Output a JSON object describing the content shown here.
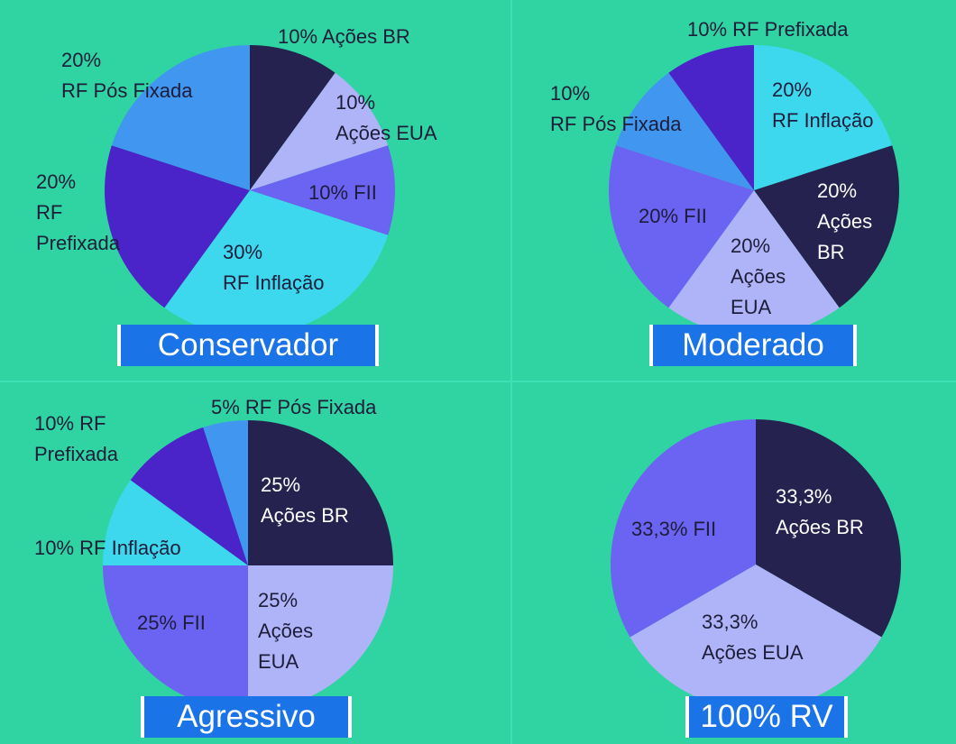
{
  "colors": {
    "background": "#30d3a2",
    "navy": "#262250",
    "lavender": "#aeb4f7",
    "violet": "#6b63f2",
    "cyan": "#3dd8ee",
    "purple": "#4a23c9",
    "blue": "#4197f0",
    "badge": "#1a74e8",
    "dark_text": "#1d1d3a",
    "light_text": "#ffffff"
  },
  "portfolios": {
    "conservador": "Conservador",
    "moderado": "Moderado",
    "agressivo": "Agressivo",
    "rv": "100% RV"
  },
  "chart_data": [
    {
      "type": "pie",
      "title": "Conservador",
      "slices": [
        {
          "label": "Ações BR",
          "value": 10,
          "text": [
            "10% Ações BR"
          ],
          "color": "#262250"
        },
        {
          "label": "Ações EUA",
          "value": 10,
          "text": [
            "10%",
            "Ações EUA"
          ],
          "color": "#aeb4f7"
        },
        {
          "label": "FII",
          "value": 10,
          "text": [
            "10% FII"
          ],
          "color": "#6b63f2"
        },
        {
          "label": "RF Inflação",
          "value": 30,
          "text": [
            "30%",
            "RF Inflação"
          ],
          "color": "#3dd8ee"
        },
        {
          "label": "RF Prefixada",
          "value": 20,
          "text": [
            "20%",
            "RF",
            "Prefixada"
          ],
          "color": "#4a23c9"
        },
        {
          "label": "RF Pós Fixada",
          "value": 20,
          "text": [
            "20%",
            "RF Pós Fixada"
          ],
          "color": "#4197f0"
        }
      ]
    },
    {
      "type": "pie",
      "title": "Moderado",
      "slices": [
        {
          "label": "RF Inflação",
          "value": 20,
          "text": [
            "20%",
            "RF Inflação"
          ],
          "color": "#3dd8ee"
        },
        {
          "label": "Ações BR",
          "value": 20,
          "text": [
            "20%",
            "Ações",
            "BR"
          ],
          "color": "#262250"
        },
        {
          "label": "Ações EUA",
          "value": 20,
          "text": [
            "20%",
            "Ações",
            "EUA"
          ],
          "color": "#aeb4f7"
        },
        {
          "label": "FII",
          "value": 20,
          "text": [
            "20% FII"
          ],
          "color": "#6b63f2"
        },
        {
          "label": "RF Pós Fixada",
          "value": 10,
          "text": [
            "10%",
            "RF Pós Fixada"
          ],
          "color": "#4197f0"
        },
        {
          "label": "RF Prefixada",
          "value": 10,
          "text": [
            "10% RF Prefixada"
          ],
          "color": "#4a23c9"
        }
      ]
    },
    {
      "type": "pie",
      "title": "Agressivo",
      "slices": [
        {
          "label": "Ações BR",
          "value": 25,
          "text": [
            "25%",
            "Ações BR"
          ],
          "color": "#262250"
        },
        {
          "label": "Ações EUA",
          "value": 25,
          "text": [
            "25%",
            "Ações",
            "EUA"
          ],
          "color": "#aeb4f7"
        },
        {
          "label": "FII",
          "value": 25,
          "text": [
            "25% FII"
          ],
          "color": "#6b63f2"
        },
        {
          "label": "RF Inflação",
          "value": 10,
          "text": [
            "10% RF Inflação"
          ],
          "color": "#3dd8ee"
        },
        {
          "label": "RF Prefixada",
          "value": 10,
          "text": [
            "10% RF",
            "Prefixada"
          ],
          "color": "#4a23c9"
        },
        {
          "label": "RF Pós Fixada",
          "value": 5,
          "text": [
            "5% RF Pós Fixada"
          ],
          "color": "#4197f0"
        }
      ]
    },
    {
      "type": "pie",
      "title": "100% RV",
      "slices": [
        {
          "label": "Ações BR",
          "value": 33.3,
          "text": [
            "33,3%",
            "Ações BR"
          ],
          "color": "#262250"
        },
        {
          "label": "Ações EUA",
          "value": 33.3,
          "text": [
            "33,3%",
            "Ações EUA"
          ],
          "color": "#aeb4f7"
        },
        {
          "label": "FII",
          "value": 33.3,
          "text": [
            "33,3% FII"
          ],
          "color": "#6b63f2"
        }
      ]
    }
  ]
}
